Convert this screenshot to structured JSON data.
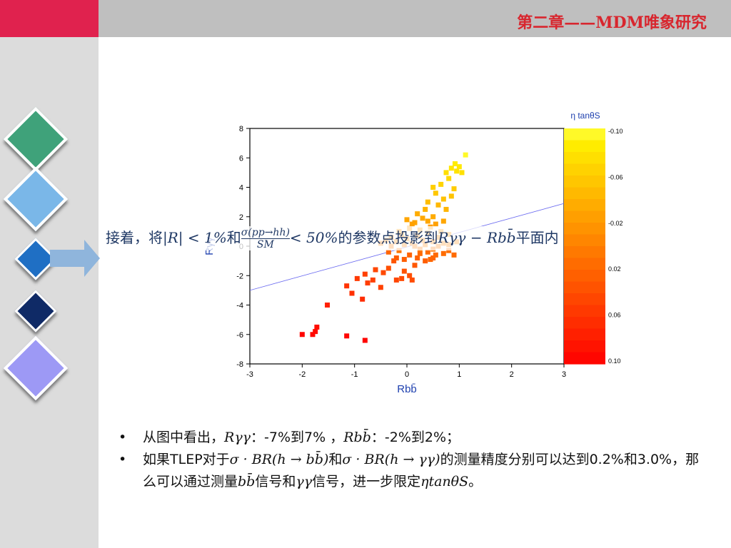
{
  "slide": {
    "title": "第二章——MDM唯象研究",
    "caption": {
      "text_before": "接着，将",
      "cond1": "|R| < 1%",
      "text_and": "和",
      "frac_num": "σ(pp→hh)",
      "frac_den": "SM",
      "cond2": "< 50%",
      "text_mid": "的参数点投影到",
      "plane": "Rγγ − Rbb̄",
      "text_after": "平面内"
    },
    "bullets": [
      {
        "t1": "从图中看出，",
        "m1": "Rγγ",
        "t2": "：-7%到7% ，",
        "m2": "Rbb̄",
        "t3": "：-2%到2%；"
      },
      {
        "t1": "如果TLEP对于",
        "m1": "σ · BR(h → bb̄)",
        "t2": "和",
        "m2": "σ · BR(h → γγ)",
        "t3": "的测量精度分别可以达到0.2%和3.0%，那么可以通过测量",
        "m3": "bb̄",
        "t4": "信号和",
        "m4": "γγ",
        "t5": "信号，进一步限定",
        "m5": "ηtanθS",
        "t6": "。"
      }
    ],
    "colors": {
      "title": "#d8262e",
      "topbar": "#bfbfbf",
      "accent_red": "#e0224e",
      "left_panel": "#dcdcdc",
      "caption": "#1f3864"
    },
    "icons": [
      "diamond-green-icon",
      "diamond-lightblue-icon",
      "diamond-blue-icon",
      "diamond-navy-icon",
      "diamond-lavender-icon",
      "arrow-right-icon"
    ]
  },
  "chart_data": {
    "type": "scatter",
    "xlabel": "Rbb̄",
    "ylabel": "Rγγ",
    "xlim": [
      -3,
      3
    ],
    "ylim": [
      -8,
      8
    ],
    "xticks": [
      -3,
      -2,
      -1,
      0,
      1,
      2,
      3
    ],
    "yticks": [
      -8,
      -6,
      -4,
      -2,
      0,
      2,
      4,
      6,
      8
    ],
    "colorbar": {
      "label": "η tanθS",
      "ticks": [
        "-0.10",
        "-0.06",
        "-0.02",
        "0.02",
        "0.06",
        "0.10"
      ],
      "range": [
        -0.1,
        0.1
      ]
    },
    "fit_line": [
      [
        -3,
        -3.0
      ],
      [
        3,
        2.9
      ]
    ],
    "points": [
      [
        -2.0,
        -6.0,
        0.096
      ],
      [
        -1.8,
        -6.0,
        0.094
      ],
      [
        -1.75,
        -5.8,
        0.092
      ],
      [
        -1.72,
        -5.5,
        0.09
      ],
      [
        -1.15,
        -6.1,
        0.095
      ],
      [
        -0.8,
        -6.4,
        0.097
      ],
      [
        -1.52,
        -4.0,
        0.075
      ],
      [
        -1.15,
        -2.7,
        0.06
      ],
      [
        -1.05,
        -3.2,
        0.062
      ],
      [
        -0.85,
        -3.6,
        0.065
      ],
      [
        -0.95,
        -2.2,
        0.055
      ],
      [
        -0.8,
        -1.9,
        0.05
      ],
      [
        -0.75,
        -2.5,
        0.052
      ],
      [
        -0.6,
        -1.6,
        0.045
      ],
      [
        -0.65,
        -2.3,
        0.05
      ],
      [
        -0.5,
        -2.8,
        0.05
      ],
      [
        -0.45,
        -1.8,
        0.042
      ],
      [
        -0.35,
        -1.5,
        0.038
      ],
      [
        -0.2,
        -2.3,
        0.045
      ],
      [
        -0.1,
        -2.2,
        0.043
      ],
      [
        -0.05,
        -1.7,
        0.036
      ],
      [
        0.05,
        -2.0,
        0.038
      ],
      [
        0.15,
        -1.3,
        0.032
      ],
      [
        -0.25,
        -1.0,
        0.033
      ],
      [
        0.1,
        -2.3,
        0.04
      ],
      [
        -0.35,
        -0.4,
        0.02
      ],
      [
        -0.2,
        -0.8,
        0.028
      ],
      [
        -0.05,
        -0.9,
        0.026
      ],
      [
        0.05,
        -0.6,
        0.022
      ],
      [
        0.2,
        -0.8,
        0.024
      ],
      [
        0.35,
        -1.0,
        0.026
      ],
      [
        0.5,
        -0.8,
        0.022
      ],
      [
        0.25,
        -0.5,
        0.018
      ],
      [
        0.4,
        -0.4,
        0.016
      ],
      [
        0.55,
        -0.6,
        0.018
      ],
      [
        0.7,
        -0.5,
        0.015
      ],
      [
        0.8,
        -0.3,
        0.012
      ],
      [
        0.9,
        -0.6,
        0.016
      ],
      [
        0.45,
        -0.9,
        0.02
      ],
      [
        -0.5,
        0.2,
        0.0
      ],
      [
        -0.4,
        0.4,
        -0.005
      ],
      [
        -0.3,
        0.6,
        -0.01
      ],
      [
        -0.2,
        0.3,
        -0.002
      ],
      [
        -0.1,
        0.8,
        -0.012
      ],
      [
        0.0,
        0.5,
        -0.008
      ],
      [
        0.1,
        0.2,
        0.0
      ],
      [
        0.2,
        0.7,
        -0.01
      ],
      [
        0.3,
        0.4,
        -0.005
      ],
      [
        0.4,
        0.9,
        -0.014
      ],
      [
        0.5,
        0.3,
        -0.004
      ],
      [
        0.6,
        0.6,
        -0.01
      ],
      [
        0.7,
        0.2,
        -0.002
      ],
      [
        -0.15,
        1.0,
        -0.016
      ],
      [
        0.05,
        1.2,
        -0.02
      ],
      [
        0.25,
        1.1,
        -0.018
      ],
      [
        0.45,
        1.3,
        -0.022
      ],
      [
        0.65,
        1.0,
        -0.018
      ],
      [
        0.8,
        0.8,
        -0.015
      ],
      [
        0.0,
        1.8,
        -0.03
      ],
      [
        0.15,
        1.6,
        -0.028
      ],
      [
        0.3,
        1.9,
        -0.032
      ],
      [
        0.5,
        2.0,
        -0.034
      ],
      [
        0.7,
        1.7,
        -0.03
      ],
      [
        0.55,
        1.5,
        -0.026
      ],
      [
        0.35,
        2.5,
        -0.04
      ],
      [
        0.6,
        2.8,
        -0.044
      ],
      [
        0.75,
        2.5,
        -0.042
      ],
      [
        0.4,
        3.0,
        -0.048
      ],
      [
        0.55,
        3.6,
        -0.056
      ],
      [
        0.7,
        3.2,
        -0.052
      ],
      [
        0.5,
        4.0,
        -0.062
      ],
      [
        0.65,
        4.2,
        -0.066
      ],
      [
        0.85,
        3.4,
        -0.054
      ],
      [
        0.9,
        3.9,
        -0.06
      ],
      [
        0.8,
        4.6,
        -0.07
      ],
      [
        0.75,
        5.0,
        -0.075
      ],
      [
        0.95,
        5.1,
        -0.078
      ],
      [
        1.0,
        5.4,
        -0.082
      ],
      [
        1.05,
        5.0,
        -0.076
      ],
      [
        0.92,
        5.6,
        -0.085
      ],
      [
        0.85,
        5.3,
        -0.08
      ],
      [
        1.12,
        6.2,
        -0.095
      ],
      [
        -0.05,
        0.1,
        0.0
      ],
      [
        0.15,
        0.0,
        0.002
      ],
      [
        0.35,
        0.1,
        0.0
      ],
      [
        0.6,
        0.0,
        0.003
      ],
      [
        0.8,
        0.1,
        0.0
      ],
      [
        -0.3,
        0.0,
        0.002
      ],
      [
        0.95,
        0.3,
        -0.004
      ],
      [
        0.25,
        -0.2,
        0.006
      ],
      [
        -0.15,
        -0.3,
        0.008
      ],
      [
        0.5,
        -0.2,
        0.006
      ],
      [
        0.1,
        1.5,
        -0.026
      ],
      [
        0.4,
        1.7,
        -0.03
      ],
      [
        0.2,
        2.2,
        -0.036
      ]
    ]
  }
}
